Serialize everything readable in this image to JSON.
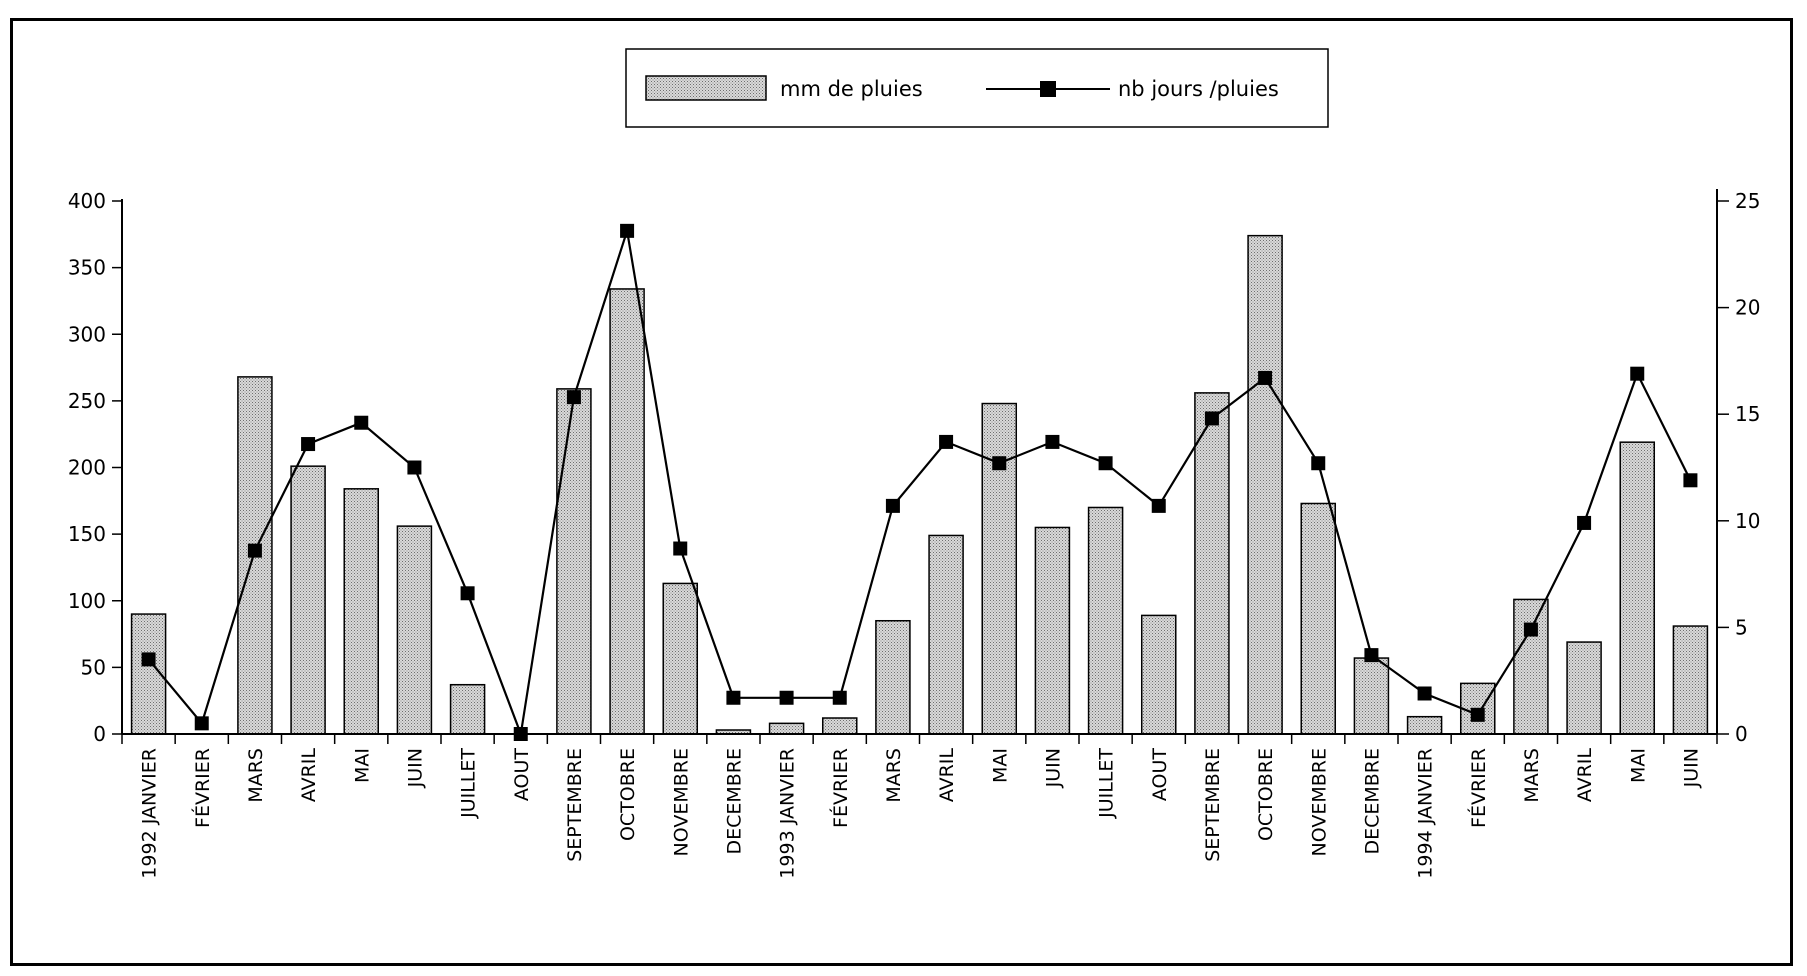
{
  "chart_data": {
    "type": "bar",
    "title": "",
    "xlabel": "",
    "ylabel": "",
    "y2label": "",
    "legend_position": "top-center",
    "grid": false,
    "bar_color": "#c8c8c8",
    "line_color": "#000000",
    "ylim": [
      0,
      400
    ],
    "y_ticks": [
      0,
      50,
      100,
      150,
      200,
      250,
      300,
      350,
      400
    ],
    "y2lim": [
      0,
      25
    ],
    "y2_ticks": [
      0,
      5,
      10,
      15,
      20,
      25
    ],
    "categories": [
      "1992 JANVIER",
      "FÉVRIER",
      "MARS",
      "AVRIL",
      "MAI",
      "JUIN",
      "JUILLET",
      "AOUT",
      "SEPTEMBRE",
      "OCTOBRE",
      "NOVEMBRE",
      "DECEMBRE",
      "1993 JANVIER",
      "FÉVRIER",
      "MARS",
      "AVRIL",
      "MAI",
      "JUIN",
      "JUILLET",
      "AOUT",
      "SEPTEMBRE",
      "OCTOBRE",
      "NOVEMBRE",
      "DECEMBRE",
      "1994 JANVIER",
      "FÉVRIER",
      "MARS",
      "AVRIL",
      "MAI",
      "JUIN"
    ],
    "series": [
      {
        "name": "mm de pluies",
        "type": "bar",
        "axis": "left",
        "values": [
          90,
          0,
          268,
          201,
          184,
          156,
          37,
          0,
          259,
          334,
          113,
          3,
          8,
          12,
          85,
          149,
          248,
          155,
          170,
          89,
          256,
          374,
          173,
          57,
          13,
          38,
          101,
          69,
          219,
          81
        ]
      },
      {
        "name": "nb jours /pluies",
        "type": "line",
        "axis": "right",
        "marker": "square",
        "values": [
          3.5,
          0.5,
          8.6,
          13.6,
          14.6,
          12.5,
          6.6,
          0,
          15.8,
          23.6,
          8.7,
          1.7,
          1.7,
          1.7,
          10.7,
          13.7,
          12.7,
          13.7,
          12.7,
          10.7,
          14.8,
          16.7,
          12.7,
          3.7,
          1.9,
          0.9,
          4.9,
          9.9,
          16.9,
          11.9
        ]
      }
    ]
  }
}
